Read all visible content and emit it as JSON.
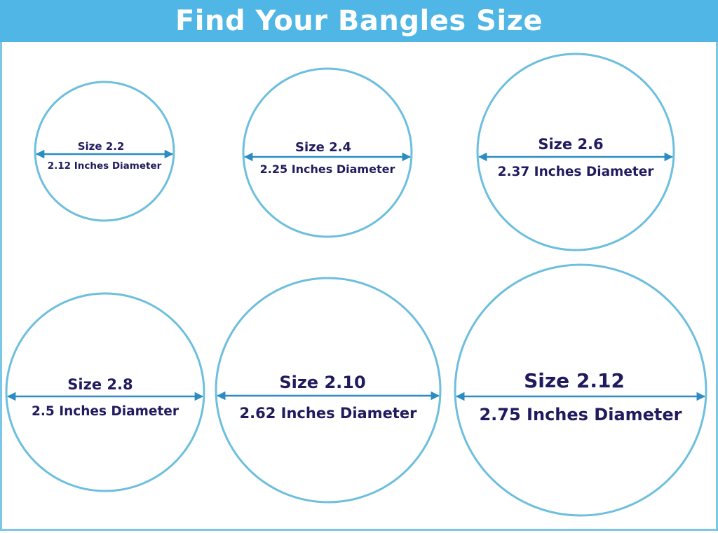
{
  "title": "Find Your Bangles Size",
  "colors": {
    "header": "#4fb6e6",
    "circle": "#6dbfdd",
    "arrow": "#2a8cc2",
    "text": "#201b5e"
  },
  "sizes": [
    {
      "size_label": "Size 2.2",
      "diameter_label": "2.12 Inches Diameter"
    },
    {
      "size_label": "Size 2.4",
      "diameter_label": "2.25 Inches Diameter"
    },
    {
      "size_label": "Size 2.6",
      "diameter_label": "2.37 Inches Diameter"
    },
    {
      "size_label": "Size 2.8",
      "diameter_label": "2.5 Inches Diameter"
    },
    {
      "size_label": "Size 2.10",
      "diameter_label": "2.62 Inches Diameter"
    },
    {
      "size_label": "Size 2.12",
      "diameter_label": "2.75 Inches Diameter"
    }
  ]
}
